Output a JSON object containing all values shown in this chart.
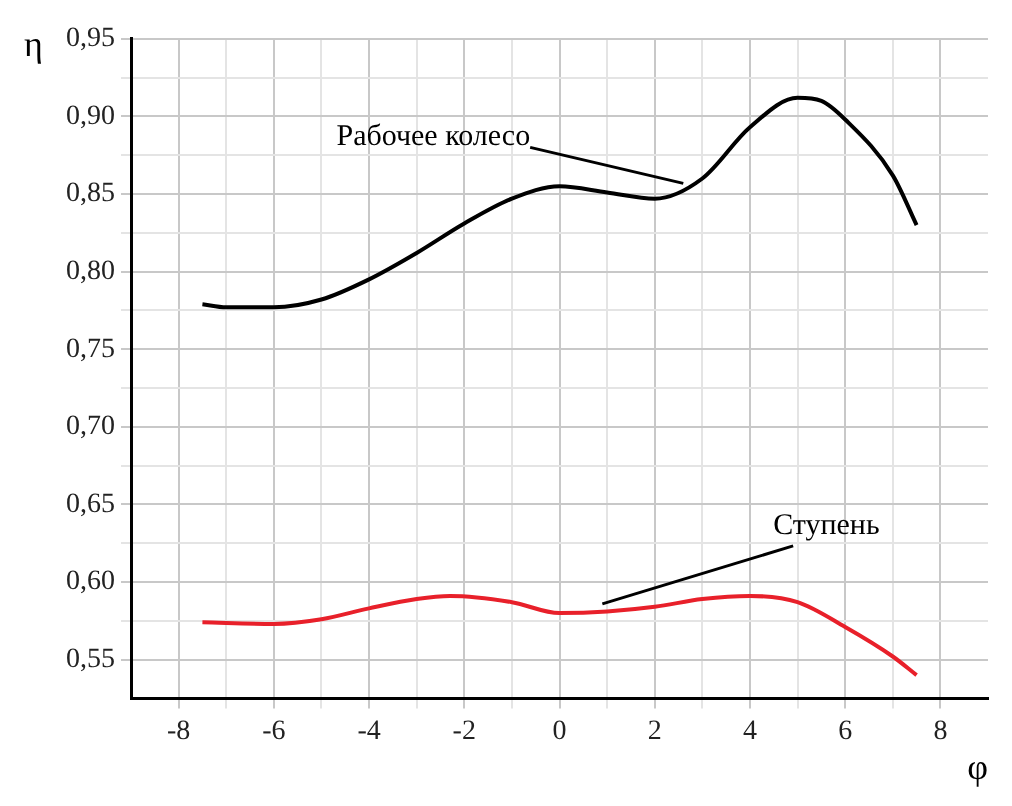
{
  "chart_data": {
    "type": "line",
    "xlabel": "φ",
    "ylabel": "η",
    "xlim": [
      -9,
      9
    ],
    "ylim": [
      0.525,
      0.95
    ],
    "xticks": [
      {
        "value": -8,
        "label": "-8"
      },
      {
        "value": -7,
        "label": null
      },
      {
        "value": -6,
        "label": "-6"
      },
      {
        "value": -5,
        "label": null
      },
      {
        "value": -4,
        "label": "-4"
      },
      {
        "value": -3,
        "label": null
      },
      {
        "value": -2,
        "label": "-2"
      },
      {
        "value": -1,
        "label": null
      },
      0,
      {
        "value": 1,
        "label": null
      },
      2,
      {
        "value": 3,
        "label": null
      },
      4,
      {
        "value": 5,
        "label": null
      },
      6,
      {
        "value": 7,
        "label": null
      },
      8
    ],
    "yticks": [
      {
        "value": 0.55,
        "label": "0,55"
      },
      {
        "value": 0.575,
        "label": null
      },
      {
        "value": 0.6,
        "label": "0,60"
      },
      {
        "value": 0.625,
        "label": null
      },
      {
        "value": 0.65,
        "label": "0,65"
      },
      {
        "value": 0.675,
        "label": null
      },
      {
        "value": 0.7,
        "label": "0,70"
      },
      {
        "value": 0.725,
        "label": null
      },
      {
        "value": 0.75,
        "label": "0,75"
      },
      {
        "value": 0.775,
        "label": null
      },
      {
        "value": 0.8,
        "label": "0,80"
      },
      {
        "value": 0.825,
        "label": null
      },
      {
        "value": 0.85,
        "label": "0,85"
      },
      {
        "value": 0.875,
        "label": null
      },
      {
        "value": 0.9,
        "label": "0,90"
      },
      {
        "value": 0.925,
        "label": null
      },
      {
        "value": 0.95,
        "label": "0,95"
      }
    ],
    "grid": true,
    "legend": false,
    "marker": "none",
    "line_style": "solid",
    "series": [
      {
        "color": "#000000",
        "x": [
          -7.5,
          -7,
          -6,
          -5,
          -4,
          -3,
          -2,
          -1,
          0,
          1,
          2,
          3,
          4,
          5,
          5.5,
          6,
          7,
          7.5
        ],
        "values": [
          0.779,
          0.777,
          0.777,
          0.782,
          0.795,
          0.812,
          0.831,
          0.847,
          0.855,
          0.851,
          0.847,
          0.86,
          0.893,
          0.912,
          0.91,
          0.898,
          0.862,
          0.83
        ]
      },
      {
        "color": "#e8202a",
        "x": [
          -7.5,
          -6,
          -5,
          -4,
          -3,
          -2.3,
          -1,
          0,
          1,
          2,
          3,
          4,
          5,
          6,
          7,
          7.5
        ],
        "values": [
          0.574,
          0.573,
          0.576,
          0.583,
          0.589,
          0.591,
          0.587,
          0.58,
          0.581,
          0.584,
          0.589,
          0.591,
          0.587,
          0.571,
          0.552,
          0.54
        ]
      }
    ],
    "annotations": [
      {
        "text": "Рабочее колесо",
        "x": 2.6,
        "y": 0.853
      },
      {
        "text": "Ступень",
        "x": 0.9,
        "y": 0.582
      }
    ]
  }
}
